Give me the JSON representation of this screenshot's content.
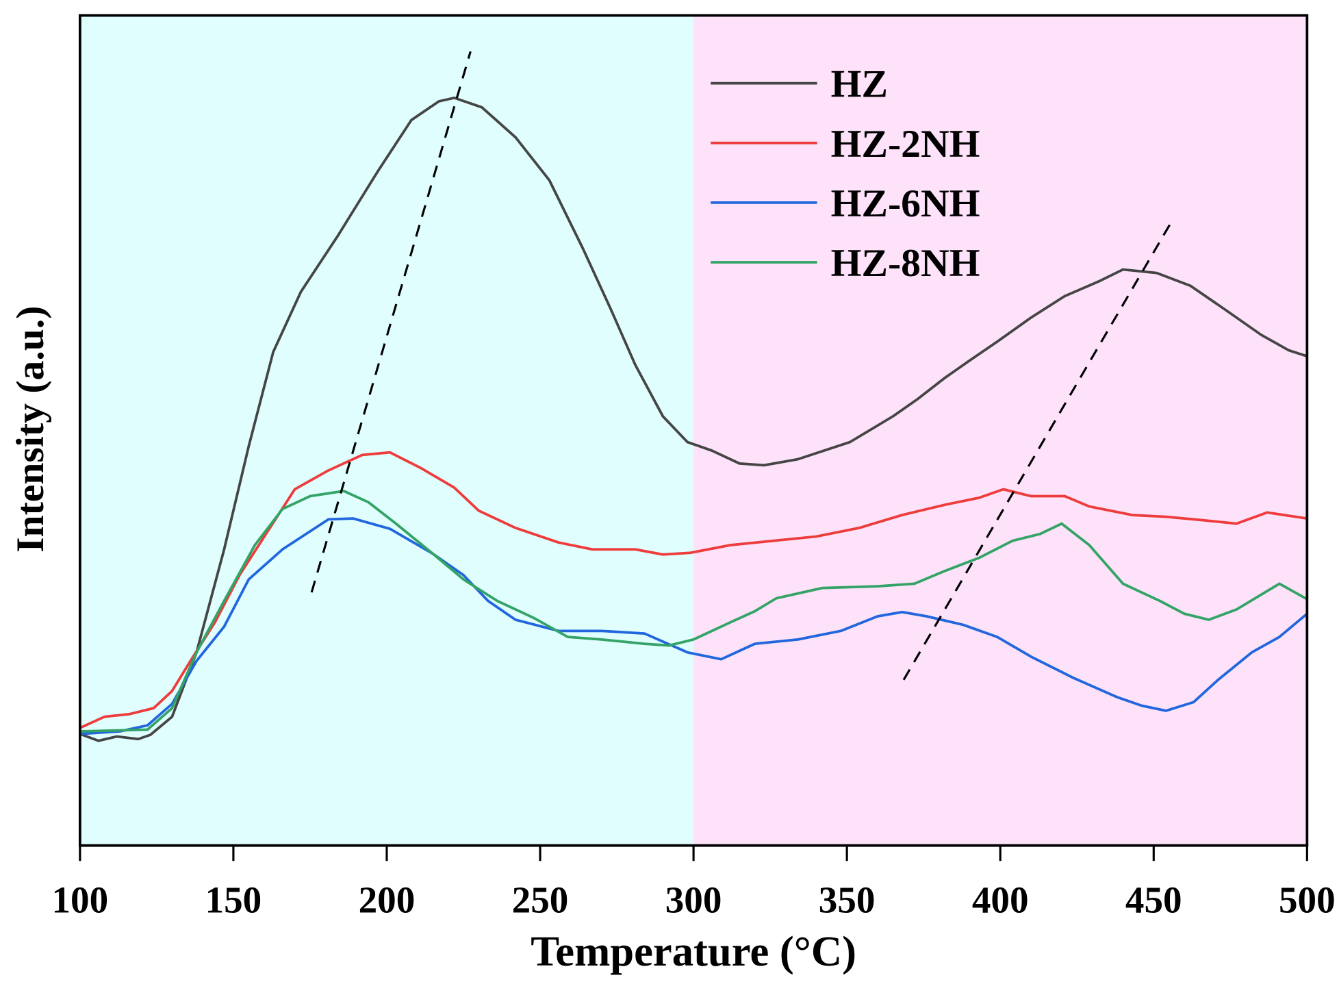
{
  "chart_data": {
    "type": "line",
    "title": "",
    "xlabel": "Temperature (°C)",
    "ylabel": "Intensity (a.u.)",
    "xlim": [
      100,
      500
    ],
    "ylim": [
      0,
      967
    ],
    "xticks": [
      "100",
      "150",
      "200",
      "250",
      "300",
      "350",
      "400",
      "450",
      "500"
    ],
    "yticks": [],
    "grid": false,
    "legend_position": "top-right",
    "regions": [
      {
        "from": 100,
        "to": 300,
        "color": "#e0fefe"
      },
      {
        "from": 300,
        "to": 500,
        "color": "#fde2fa"
      }
    ],
    "series": [
      {
        "name": "HZ",
        "color": "#454545",
        "x": [
          100,
          106,
          112,
          119,
          123,
          130,
          138,
          147,
          155,
          163,
          172,
          184,
          197,
          208,
          217,
          222,
          231,
          242,
          253,
          264,
          273,
          281,
          290,
          298,
          306,
          315,
          323,
          334,
          351,
          365,
          373,
          382,
          390,
          399,
          410,
          421,
          432,
          440,
          451,
          462,
          473,
          485,
          494,
          500
        ],
        "y": [
          130,
          122,
          127,
          124,
          129,
          150,
          225,
          345,
          465,
          575,
          645,
          710,
          785,
          845,
          867,
          871,
          860,
          825,
          775,
          695,
          625,
          560,
          500,
          470,
          460,
          445,
          443,
          450,
          470,
          500,
          520,
          545,
          565,
          587,
          615,
          640,
          657,
          671,
          667,
          652,
          625,
          595,
          577,
          570
        ]
      },
      {
        "name": "HZ-2NH",
        "color": "#ee3b3b",
        "x": [
          100,
          108,
          116,
          124,
          130,
          136,
          144,
          152,
          161,
          170,
          181,
          192,
          201,
          211,
          222,
          230,
          242,
          256,
          267,
          281,
          290,
          299,
          312,
          326,
          340,
          354,
          368,
          382,
          393,
          401,
          410,
          421,
          429,
          443,
          454,
          466,
          477,
          487,
          500
        ],
        "y": [
          137,
          150,
          153,
          160,
          180,
          215,
          260,
          315,
          365,
          415,
          437,
          455,
          458,
          440,
          417,
          390,
          370,
          353,
          345,
          345,
          339,
          341,
          350,
          355,
          360,
          370,
          385,
          397,
          405,
          415,
          407,
          407,
          395,
          385,
          383,
          379,
          375,
          388,
          381
        ]
      },
      {
        "name": "HZ-6NH",
        "color": "#2266dd",
        "x": [
          100,
          113,
          122,
          130,
          138,
          147,
          155,
          166,
          181,
          189,
          201,
          215,
          225,
          233,
          242,
          256,
          270,
          284,
          298,
          309,
          320,
          334,
          348,
          360,
          368,
          376,
          388,
          399,
          410,
          424,
          438,
          446,
          454,
          463,
          471,
          482,
          491,
          500
        ],
        "y": [
          130,
          133,
          140,
          165,
          215,
          255,
          310,
          345,
          380,
          381,
          369,
          340,
          315,
          285,
          263,
          250,
          250,
          247,
          225,
          217,
          235,
          240,
          250,
          267,
          272,
          267,
          257,
          243,
          220,
          195,
          173,
          163,
          157,
          167,
          193,
          225,
          243,
          270
        ]
      },
      {
        "name": "HZ-8NH",
        "color": "#33a366",
        "x": [
          100,
          122,
          130,
          138,
          147,
          157,
          166,
          175,
          186,
          194,
          203,
          215,
          225,
          236,
          248,
          259,
          270,
          284,
          292,
          300,
          312,
          320,
          327,
          342,
          360,
          372,
          382,
          393,
          404,
          413,
          420,
          429,
          440,
          452,
          460,
          468,
          477,
          491,
          500
        ],
        "y": [
          133,
          135,
          160,
          225,
          285,
          350,
          392,
          407,
          413,
          400,
          375,
          340,
          310,
          285,
          265,
          243,
          240,
          235,
          233,
          240,
          260,
          273,
          288,
          300,
          302,
          305,
          320,
          335,
          355,
          363,
          375,
          350,
          305,
          285,
          270,
          263,
          275,
          305,
          287
        ]
      }
    ],
    "annotations": [
      {
        "type": "dashed-line",
        "color": "#000000",
        "from": [
          175.5,
          295
        ],
        "to": [
          227.3,
          925
        ]
      },
      {
        "type": "dashed-line",
        "color": "#000000",
        "from": [
          368.5,
          193
        ],
        "to": [
          455.2,
          723
        ]
      }
    ]
  }
}
